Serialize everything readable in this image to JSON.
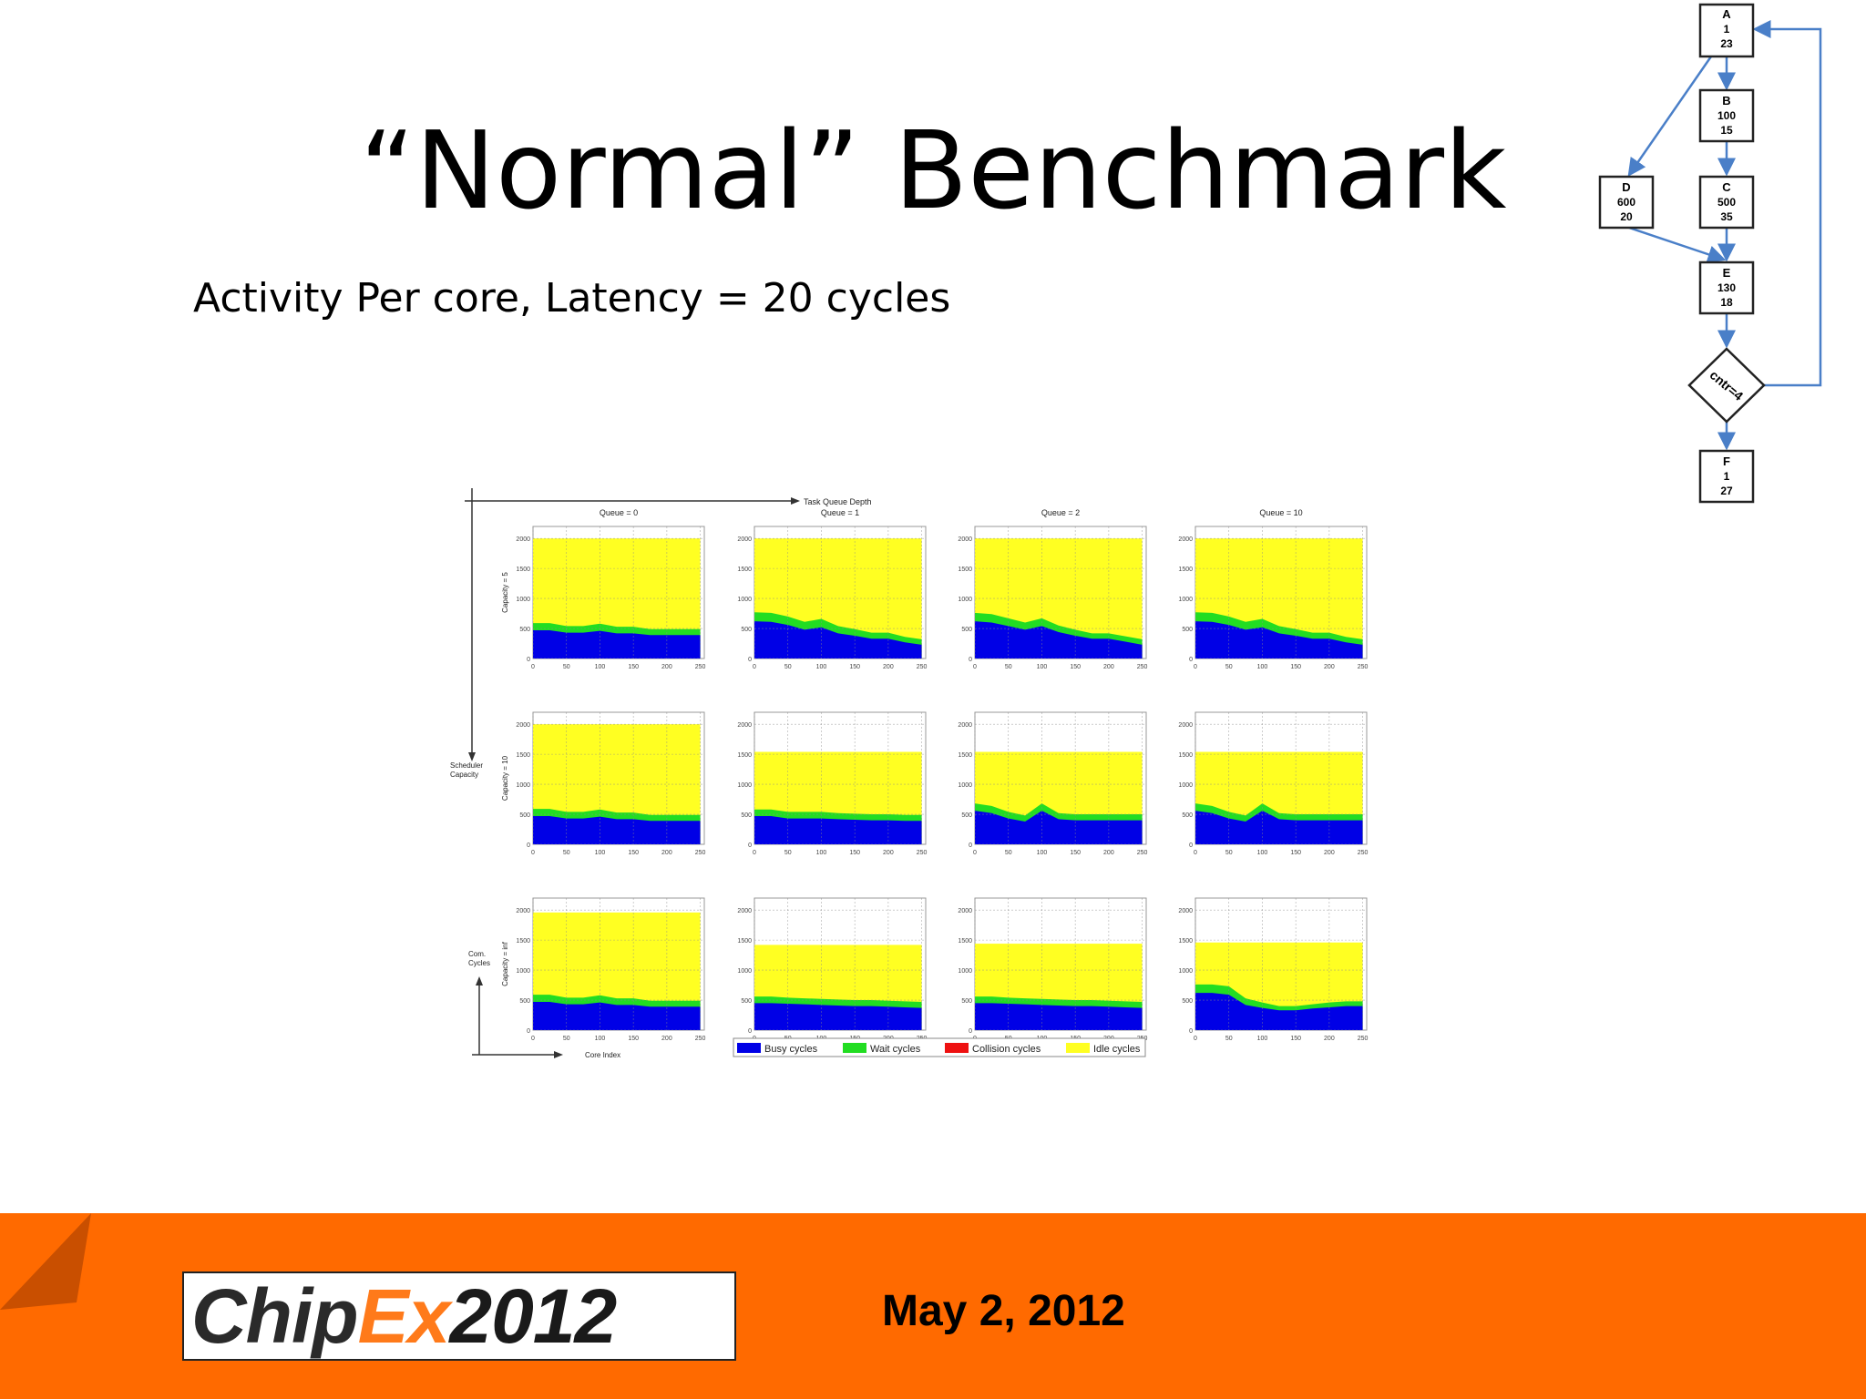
{
  "slide": {
    "title": "“Normal” Benchmark",
    "subtitle": "Activity Per core, Latency = 20 cycles",
    "date": "May 2, 2012",
    "logo": {
      "part1": "Chip",
      "part2": "Ex",
      "part3": "2012"
    }
  },
  "flowchart": {
    "nodes": [
      {
        "id": "A",
        "lines": [
          "A",
          "1",
          "23"
        ]
      },
      {
        "id": "B",
        "lines": [
          "B",
          "100",
          "15"
        ]
      },
      {
        "id": "C",
        "lines": [
          "C",
          "500",
          "35"
        ]
      },
      {
        "id": "D",
        "lines": [
          "D",
          "600",
          "20"
        ]
      },
      {
        "id": "E",
        "lines": [
          "E",
          "130",
          "18"
        ]
      },
      {
        "id": "cntr",
        "lines": [
          "cntr=4"
        ]
      },
      {
        "id": "F",
        "lines": [
          "F",
          "1",
          "27"
        ]
      }
    ],
    "edges": [
      [
        "A",
        "B"
      ],
      [
        "A",
        "D"
      ],
      [
        "B",
        "C"
      ],
      [
        "C",
        "E"
      ],
      [
        "D",
        "E"
      ],
      [
        "E",
        "cntr"
      ],
      [
        "cntr",
        "F"
      ],
      [
        "cntr",
        "A"
      ]
    ]
  },
  "chart_data": {
    "type": "area",
    "stacked": true,
    "grid": true,
    "figure_labels": {
      "column_axis": "Task Queue Depth",
      "row_axis": "Scheduler Capacity",
      "y_axis": "Com. Cycles",
      "x_axis": "Core Index"
    },
    "column_titles": [
      "Queue = 0",
      "Queue = 1",
      "Queue = 2",
      "Queue = 10"
    ],
    "row_labels": [
      "Capacity = 5",
      "Capacity = 10",
      "Capacity = inf"
    ],
    "x_ticks": [
      0,
      50,
      100,
      150,
      200,
      250
    ],
    "y_ticks": [
      0,
      500,
      1000,
      1500,
      2000
    ],
    "xlim": [
      0,
      256
    ],
    "ylim": [
      0,
      2200
    ],
    "legend": {
      "placement": "bottom",
      "entries": [
        {
          "name": "Busy cycles",
          "color": "#0000e6"
        },
        {
          "name": "Wait cycles",
          "color": "#22dd22"
        },
        {
          "name": "Collision cycles",
          "color": "#ee1111"
        },
        {
          "name": "Idle cycles",
          "color": "#ffff22"
        }
      ]
    },
    "x": [
      0,
      25,
      50,
      75,
      100,
      125,
      150,
      175,
      200,
      225,
      250
    ],
    "panels": [
      {
        "row": 0,
        "col": 0,
        "busy": [
          470,
          470,
          430,
          430,
          460,
          420,
          420,
          390,
          390,
          390,
          390
        ],
        "wait": [
          120,
          120,
          110,
          110,
          120,
          110,
          110,
          100,
          100,
          100,
          100
        ],
        "total": 2000
      },
      {
        "row": 0,
        "col": 1,
        "busy": [
          620,
          610,
          560,
          480,
          520,
          420,
          380,
          330,
          330,
          270,
          230
        ],
        "wait": [
          150,
          150,
          140,
          130,
          140,
          120,
          110,
          100,
          100,
          90,
          90
        ],
        "total": 2000
      },
      {
        "row": 0,
        "col": 2,
        "busy": [
          620,
          600,
          540,
          480,
          540,
          440,
          380,
          330,
          330,
          280,
          230
        ],
        "wait": [
          140,
          140,
          130,
          120,
          130,
          110,
          100,
          90,
          90,
          90,
          90
        ],
        "total": 2000
      },
      {
        "row": 0,
        "col": 3,
        "busy": [
          620,
          610,
          560,
          480,
          520,
          420,
          380,
          330,
          330,
          270,
          230
        ],
        "wait": [
          150,
          150,
          140,
          130,
          140,
          120,
          110,
          100,
          100,
          90,
          90
        ],
        "total": 2000
      },
      {
        "row": 1,
        "col": 0,
        "busy": [
          470,
          470,
          430,
          430,
          460,
          420,
          420,
          390,
          390,
          390,
          390
        ],
        "wait": [
          120,
          120,
          110,
          110,
          120,
          110,
          110,
          100,
          100,
          100,
          100
        ],
        "total": 2000
      },
      {
        "row": 1,
        "col": 1,
        "busy": [
          470,
          470,
          430,
          430,
          430,
          420,
          410,
          400,
          400,
          390,
          390
        ],
        "wait": [
          110,
          110,
          110,
          110,
          110,
          100,
          100,
          100,
          100,
          100,
          100
        ],
        "total": 1540
      },
      {
        "row": 1,
        "col": 2,
        "busy": [
          560,
          520,
          430,
          380,
          560,
          420,
          400,
          400,
          400,
          400,
          400
        ],
        "wait": [
          120,
          120,
          110,
          100,
          120,
          100,
          100,
          100,
          100,
          100,
          100
        ],
        "total": 1540
      },
      {
        "row": 1,
        "col": 3,
        "busy": [
          560,
          520,
          430,
          380,
          560,
          420,
          400,
          400,
          400,
          400,
          400
        ],
        "wait": [
          120,
          120,
          110,
          100,
          120,
          100,
          100,
          100,
          100,
          100,
          100
        ],
        "total": 1540
      },
      {
        "row": 2,
        "col": 0,
        "busy": [
          470,
          470,
          430,
          430,
          460,
          420,
          420,
          390,
          390,
          390,
          390
        ],
        "wait": [
          120,
          120,
          110,
          110,
          120,
          110,
          110,
          100,
          100,
          100,
          100
        ],
        "total": 1960
      },
      {
        "row": 2,
        "col": 1,
        "busy": [
          450,
          450,
          440,
          430,
          420,
          410,
          400,
          400,
          390,
          380,
          370
        ],
        "wait": [
          110,
          110,
          100,
          100,
          100,
          100,
          100,
          100,
          100,
          100,
          100
        ],
        "total": 1420
      },
      {
        "row": 2,
        "col": 2,
        "busy": [
          450,
          450,
          440,
          430,
          420,
          410,
          400,
          400,
          390,
          380,
          370
        ],
        "wait": [
          110,
          110,
          100,
          100,
          100,
          100,
          100,
          100,
          100,
          100,
          100
        ],
        "total": 1440
      },
      {
        "row": 2,
        "col": 3,
        "busy": [
          620,
          620,
          590,
          420,
          370,
          330,
          330,
          360,
          380,
          400,
          400
        ],
        "wait": [
          140,
          140,
          140,
          110,
          90,
          70,
          70,
          70,
          80,
          80,
          80
        ],
        "total": 1460
      }
    ]
  }
}
